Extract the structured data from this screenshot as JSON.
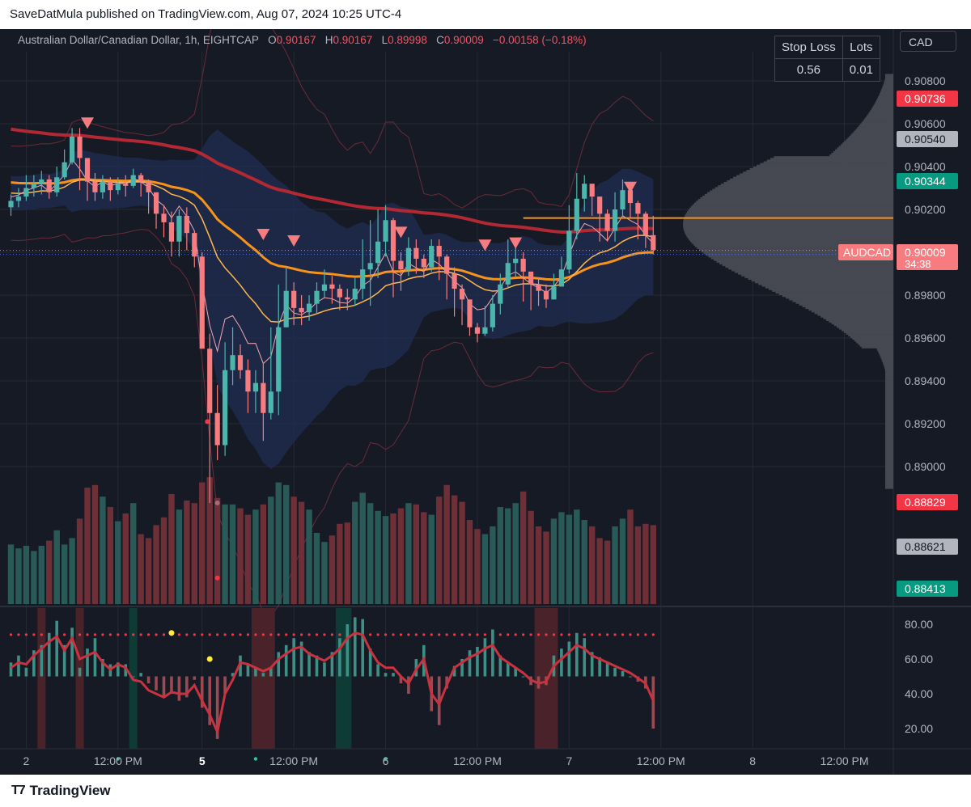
{
  "header": {
    "published_text": "SaveDatMula published on TradingView.com, Aug 07, 2024 10:25 UTC-4"
  },
  "legend": {
    "symbol": "Australian Dollar/Canadian Dollar, 1h, EIGHTCAP",
    "o_label": "O",
    "o_value": "0.90167",
    "h_label": "H",
    "h_value": "0.90167",
    "l_label": "L",
    "l_value": "0.89998",
    "c_label": "C",
    "c_value": "0.90009",
    "change": "−0.00158 (−0.18%)"
  },
  "risk_table": {
    "headers": [
      "Stop Loss",
      "Lots"
    ],
    "values": [
      "0.56",
      "0.01"
    ]
  },
  "currency_button": "CAD",
  "footer": {
    "brand": "TradingView"
  },
  "colors": {
    "background": "#161a25",
    "bull": "#4db6ac",
    "bear": "#f77c80",
    "bear_strong": "#f23645",
    "ma_long": "#b22833",
    "ma_mid": "#f7931a",
    "ma_short": "#ffb74d",
    "band_fill": "#1e2b4d",
    "vp_fill": "#4a4d57",
    "grid": "#262a35"
  },
  "chart_data": [
    {
      "type": "candlestick",
      "title": "Australian Dollar/Canadian Dollar, 1h, EIGHTCAP",
      "y_axis_side": "right",
      "ylim": [
        0.888,
        0.9091
      ],
      "y_ticks": [
        "0.90800",
        "0.90600",
        "0.90400",
        "0.90200",
        "0.90000",
        "0.89800",
        "0.89600",
        "0.89400",
        "0.89200",
        "0.89000"
      ],
      "x_ticks": [
        {
          "label": "2",
          "bar": 2
        },
        {
          "label": "12:00 PM",
          "bar": 14
        },
        {
          "label": "5",
          "bar": 25
        },
        {
          "label": "12:00 PM",
          "bar": 37
        },
        {
          "label": "6",
          "bar": 49
        },
        {
          "label": "12:00 PM",
          "bar": 61
        },
        {
          "label": "7",
          "bar": 73
        },
        {
          "label": "12:00 PM",
          "bar": 85
        },
        {
          "label": "8",
          "bar": 97
        },
        {
          "label": "12:00 PM",
          "bar": 109
        }
      ],
      "price_labels": [
        {
          "value": "0.90736",
          "style": "red"
        },
        {
          "value": "0.90540",
          "style": "gray"
        },
        {
          "value": "0.90344",
          "style": "teal"
        },
        {
          "value": "0.90009",
          "style": "red",
          "name": "AUDCAD",
          "countdown": "34:38"
        },
        {
          "value": "0.88829",
          "style": "red"
        },
        {
          "value": "0.88621",
          "style": "gray"
        },
        {
          "value": "0.88413",
          "style": "teal"
        }
      ],
      "close": [
        0.9024,
        0.9026,
        0.903,
        0.9032,
        0.9034,
        0.9028,
        0.9035,
        0.9042,
        0.9054,
        0.9044,
        0.9033,
        0.9028,
        0.9033,
        0.9029,
        0.9032,
        0.9031,
        0.9036,
        0.9033,
        0.9028,
        0.9018,
        0.9014,
        0.9005,
        0.9017,
        0.9009,
        0.8998,
        0.8955,
        0.8925,
        0.891,
        0.8945,
        0.8952,
        0.8945,
        0.8935,
        0.8939,
        0.8925,
        0.8935,
        0.8965,
        0.8982,
        0.8974,
        0.8972,
        0.8976,
        0.8982,
        0.8985,
        0.8983,
        0.8979,
        0.8978,
        0.8983,
        0.8992,
        0.8995,
        0.9005,
        0.9015,
        0.8996,
        0.8992,
        0.9002,
        0.8997,
        0.8993,
        0.9003,
        0.8998,
        0.899,
        0.8983,
        0.8978,
        0.8965,
        0.8962,
        0.8965,
        0.8976,
        0.8985,
        0.8995,
        0.8997,
        0.8991,
        0.8985,
        0.8982,
        0.8978,
        0.8984,
        0.8992,
        0.901,
        0.9025,
        0.9032,
        0.9026,
        0.9018,
        0.901,
        0.902,
        0.9029,
        0.9023,
        0.9018,
        0.9008,
        0.9001
      ],
      "high": [
        0.9027,
        0.903,
        0.9036,
        0.9036,
        0.9038,
        0.9036,
        0.904,
        0.9048,
        0.9058,
        0.9058,
        0.904,
        0.9037,
        0.9036,
        0.9035,
        0.9035,
        0.9036,
        0.9039,
        0.9037,
        0.9034,
        0.9025,
        0.9022,
        0.9019,
        0.902,
        0.9021,
        0.901,
        0.9,
        0.8962,
        0.8938,
        0.8958,
        0.8965,
        0.8957,
        0.895,
        0.8945,
        0.8948,
        0.8965,
        0.8985,
        0.8993,
        0.8986,
        0.898,
        0.898,
        0.8986,
        0.8992,
        0.8989,
        0.8985,
        0.8983,
        0.8988,
        0.9006,
        0.9015,
        0.902,
        0.9022,
        0.9016,
        0.9,
        0.9007,
        0.9006,
        0.8999,
        0.9006,
        0.9006,
        0.8999,
        0.8993,
        0.8985,
        0.8975,
        0.8967,
        0.8975,
        0.898,
        0.899,
        0.9006,
        0.9006,
        0.9,
        0.899,
        0.8988,
        0.8985,
        0.899,
        0.8998,
        0.9022,
        0.9037,
        0.9036,
        0.9031,
        0.9026,
        0.902,
        0.9028,
        0.9034,
        0.9031,
        0.9024,
        0.9019,
        0.9017
      ],
      "low": [
        0.9017,
        0.9021,
        0.9024,
        0.9026,
        0.9027,
        0.9025,
        0.9026,
        0.9034,
        0.9041,
        0.9029,
        0.9024,
        0.9024,
        0.9025,
        0.9024,
        0.9027,
        0.9026,
        0.903,
        0.9026,
        0.9018,
        0.9011,
        0.9007,
        0.8998,
        0.8998,
        0.9001,
        0.8993,
        0.8957,
        0.8883,
        0.8903,
        0.8905,
        0.8938,
        0.8941,
        0.8925,
        0.8925,
        0.8912,
        0.8922,
        0.8924,
        0.8965,
        0.8966,
        0.8966,
        0.8968,
        0.8971,
        0.8979,
        0.8976,
        0.8973,
        0.8973,
        0.8975,
        0.8978,
        0.8975,
        0.8988,
        0.8998,
        0.8979,
        0.8982,
        0.8989,
        0.899,
        0.8988,
        0.8991,
        0.8987,
        0.8978,
        0.897,
        0.8966,
        0.8961,
        0.8958,
        0.8961,
        0.8963,
        0.8971,
        0.8983,
        0.8988,
        0.8977,
        0.8973,
        0.8975,
        0.8974,
        0.8978,
        0.8985,
        0.899,
        0.9006,
        0.9019,
        0.9017,
        0.9005,
        0.9005,
        0.9005,
        0.9017,
        0.9016,
        0.9006,
        0.9002,
        0.8999
      ],
      "volume": [
        0.46,
        0.43,
        0.45,
        0.41,
        0.45,
        0.49,
        0.57,
        0.46,
        0.51,
        0.66,
        0.9,
        0.92,
        0.83,
        0.75,
        0.64,
        0.7,
        0.78,
        0.54,
        0.51,
        0.61,
        0.67,
        0.85,
        0.73,
        0.8,
        0.78,
        0.94,
        0.98,
        0.82,
        0.77,
        0.77,
        0.74,
        0.69,
        0.73,
        0.77,
        0.83,
        0.94,
        0.92,
        0.83,
        0.79,
        0.73,
        0.55,
        0.48,
        0.53,
        0.62,
        0.63,
        0.79,
        0.86,
        0.78,
        0.72,
        0.68,
        0.7,
        0.74,
        0.78,
        0.77,
        0.71,
        0.69,
        0.83,
        0.92,
        0.84,
        0.79,
        0.65,
        0.58,
        0.54,
        0.6,
        0.75,
        0.74,
        0.78,
        0.87,
        0.72,
        0.6,
        0.56,
        0.66,
        0.71,
        0.69,
        0.73,
        0.65,
        0.6,
        0.51,
        0.49,
        0.6,
        0.66,
        0.73,
        0.6,
        0.62,
        0.61
      ],
      "sell_signals": [
        {
          "bar": 10,
          "price": 0.9055
        },
        {
          "bar": 33,
          "price": 0.9003
        },
        {
          "bar": 37,
          "price": 0.9
        },
        {
          "bar": 51,
          "price": 0.9004
        },
        {
          "bar": 62,
          "price": 0.8998
        },
        {
          "bar": 66,
          "price": 0.8999
        },
        {
          "bar": 81,
          "price": 0.9025
        }
      ],
      "horizontal_line": {
        "price": 0.9016,
        "from_bar": 67,
        "color": "#f7931a"
      },
      "current_price_line": 0.90009
    },
    {
      "type": "oscillator",
      "ylim": [
        10,
        88
      ],
      "y_ticks": [
        "80.00",
        "60.00",
        "40.00",
        "20.00"
      ],
      "upper_dotted_level": 74,
      "histogram": [
        58,
        62,
        55,
        65,
        68,
        75,
        82,
        68,
        78,
        55,
        66,
        72,
        60,
        57,
        58,
        57,
        50,
        52,
        46,
        42,
        38,
        40,
        36,
        38,
        48,
        32,
        22,
        14,
        40,
        52,
        62,
        57,
        55,
        52,
        55,
        64,
        68,
        72,
        70,
        64,
        62,
        58,
        64,
        72,
        80,
        84,
        83,
        66,
        57,
        52,
        52,
        46,
        40,
        60,
        68,
        30,
        22,
        43,
        56,
        60,
        65,
        67,
        72,
        77,
        62,
        58,
        55,
        50,
        45,
        43,
        45,
        62,
        66,
        70,
        75,
        72,
        64,
        61,
        58,
        55,
        53,
        50,
        47,
        43,
        20
      ],
      "line": [
        55,
        58,
        57,
        62,
        66,
        70,
        73,
        65,
        72,
        60,
        62,
        64,
        58,
        54,
        57,
        55,
        48,
        47,
        42,
        40,
        38,
        41,
        40,
        40,
        45,
        36,
        28,
        18,
        40,
        48,
        58,
        57,
        55,
        53,
        55,
        60,
        63,
        66,
        67,
        63,
        61,
        59,
        62,
        66,
        72,
        75,
        74,
        65,
        58,
        55,
        55,
        50,
        46,
        54,
        60,
        40,
        34,
        45,
        55,
        58,
        61,
        63,
        66,
        68,
        61,
        58,
        55,
        52,
        48,
        46,
        47,
        56,
        60,
        64,
        68,
        66,
        62,
        60,
        58,
        56,
        54,
        52,
        49,
        46,
        36
      ],
      "green_zones": [
        [
          16,
          16
        ],
        [
          43,
          44
        ]
      ],
      "red_zones": [
        [
          4,
          4
        ],
        [
          9,
          9
        ],
        [
          32,
          34
        ],
        [
          69,
          71
        ]
      ],
      "yellow_dots": [
        {
          "bar": 21,
          "value": 75
        },
        {
          "bar": 26,
          "value": 60
        }
      ],
      "teal_dots": [
        {
          "bar": 14,
          "value": 30
        },
        {
          "bar": 32,
          "value": 30
        },
        {
          "bar": 49,
          "value": 30
        }
      ]
    }
  ]
}
